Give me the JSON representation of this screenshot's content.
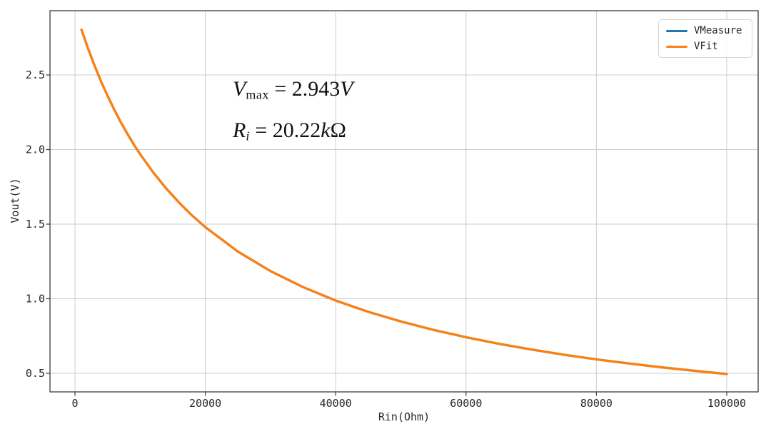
{
  "figure": {
    "background": "#ffffff",
    "frame_color": "#3c3c3c",
    "grid_color": "#cccccc",
    "tick_text_color": "#262626"
  },
  "chart_data": {
    "type": "line",
    "title": "",
    "xlabel": "Rin(Ohm)",
    "ylabel": "Vout(V)",
    "xlim": [
      -3850,
      104800
    ],
    "ylim": [
      0.375,
      2.93
    ],
    "xticks": [
      0,
      20000,
      40000,
      60000,
      80000,
      100000
    ],
    "yticks": [
      0.5,
      1.0,
      1.5,
      2.0,
      2.5
    ],
    "grid": true,
    "legend_position": "upper right",
    "x": [
      1000,
      2000,
      3000,
      4000,
      5000,
      6000,
      7000,
      8000,
      9000,
      10000,
      12000,
      14000,
      16000,
      18000,
      20000,
      25000,
      30000,
      35000,
      40000,
      45000,
      50000,
      55000,
      60000,
      65000,
      70000,
      75000,
      80000,
      85000,
      90000,
      95000,
      100000
    ],
    "series": [
      {
        "name": "VMeasure",
        "color": "#1f77b4",
        "values": [
          2.804,
          2.678,
          2.563,
          2.457,
          2.36,
          2.27,
          2.186,
          2.109,
          2.036,
          1.969,
          1.847,
          1.739,
          1.643,
          1.557,
          1.48,
          1.316,
          1.185,
          1.078,
          0.988,
          0.912,
          0.848,
          0.791,
          0.742,
          0.698,
          0.66,
          0.625,
          0.594,
          0.566,
          0.54,
          0.517,
          0.495
        ]
      },
      {
        "name": "VFit",
        "color": "#ff7f0e",
        "values": [
          2.804,
          2.678,
          2.563,
          2.457,
          2.36,
          2.27,
          2.186,
          2.109,
          2.036,
          1.969,
          1.847,
          1.739,
          1.643,
          1.557,
          1.48,
          1.316,
          1.185,
          1.078,
          0.988,
          0.912,
          0.848,
          0.791,
          0.742,
          0.698,
          0.66,
          0.625,
          0.594,
          0.566,
          0.54,
          0.517,
          0.495
        ]
      }
    ],
    "fit_parameters": {
      "v_max_volts": 2.943,
      "r_i_kilo_ohm": 20.22
    }
  },
  "annotation": {
    "line1": {
      "symbol": "V",
      "subscript": "max",
      "rhs": " = 2.943",
      "unit_italic": "V",
      "unit_upright": ""
    },
    "line2": {
      "symbol": "R",
      "subscript": "i",
      "rhs": " = 20.22",
      "unit_italic": "k",
      "unit_upright": "Ω"
    }
  }
}
